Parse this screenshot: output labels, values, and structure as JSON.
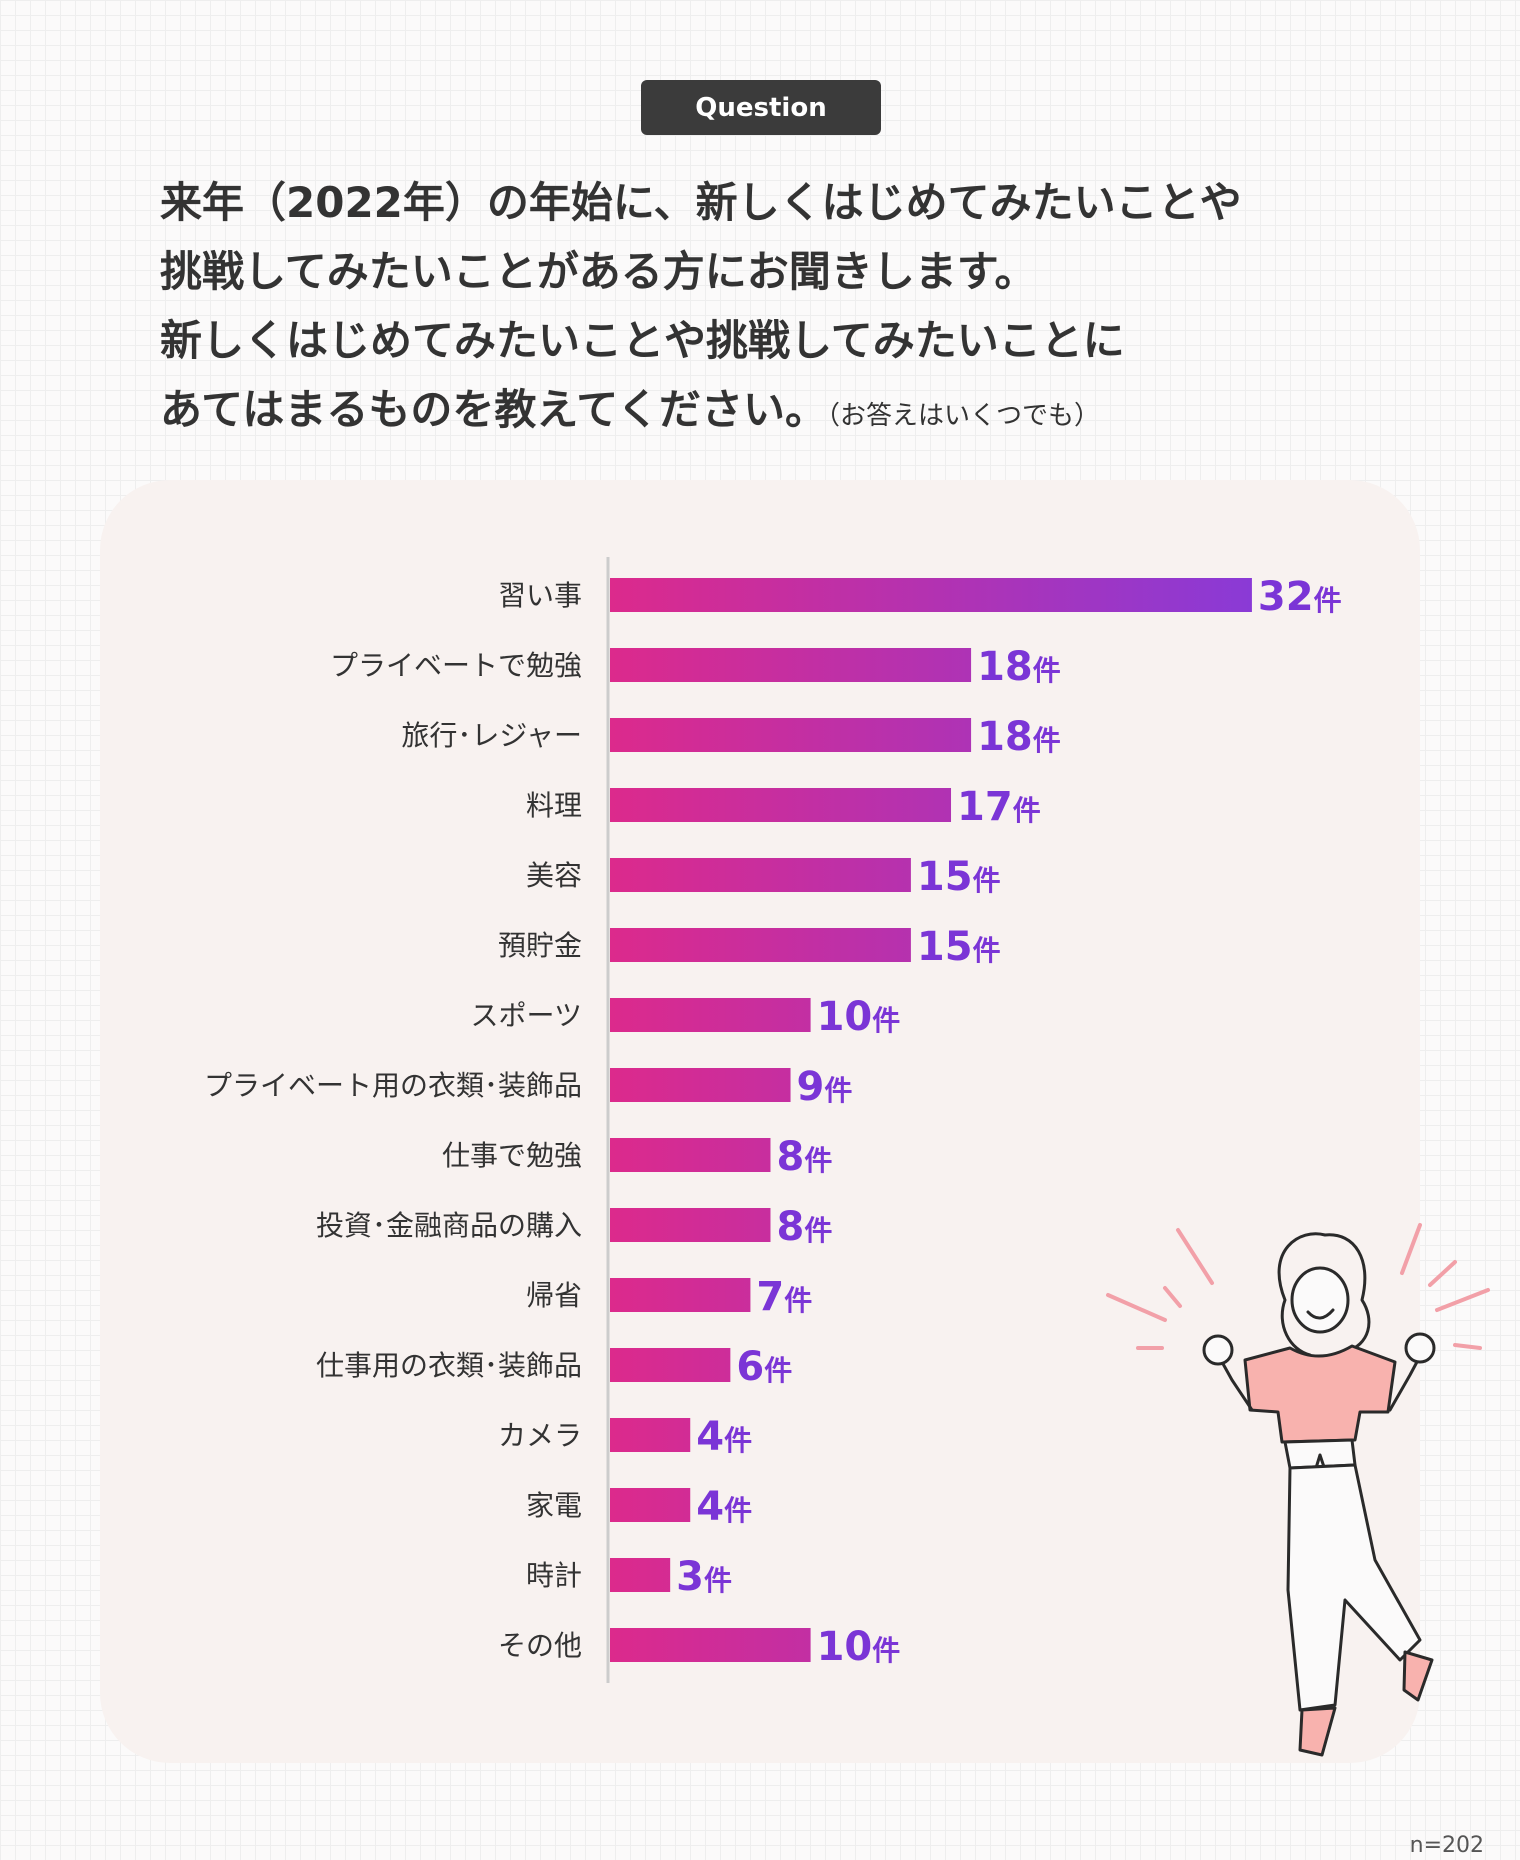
{
  "badge": {
    "label": "Question"
  },
  "question": {
    "lines": [
      "来年（2022年）の年始に、新しくはじめてみたいことや",
      "挑戦してみたいことがある方にお聞きします。",
      "新しくはじめてみたいことや挑戦してみたいことに",
      "あてはまるものを教えてください。"
    ],
    "note": "（お答えはいくつでも）"
  },
  "sample_size": "n=202",
  "colors": {
    "bar_start": "#dc2a8c",
    "bar_end": "#8a3ad6",
    "value_label": "#7b35d6",
    "axis": "#cccccc",
    "panel": "#f8f2f0"
  },
  "chart_data": {
    "type": "bar",
    "orientation": "horizontal",
    "unit": "件",
    "categories": [
      "習い事",
      "プライベートで勉強",
      "旅行･レジャー",
      "料理",
      "美容",
      "預貯金",
      "スポーツ",
      "プライベート用の衣類･装飾品",
      "仕事で勉強",
      "投資･金融商品の購入",
      "帰省",
      "仕事用の衣類･装飾品",
      "カメラ",
      "家電",
      "時計",
      "その他"
    ],
    "values": [
      32,
      18,
      18,
      17,
      15,
      15,
      10,
      9,
      8,
      8,
      7,
      6,
      4,
      4,
      3,
      10
    ],
    "xlim": [
      0,
      32
    ]
  }
}
